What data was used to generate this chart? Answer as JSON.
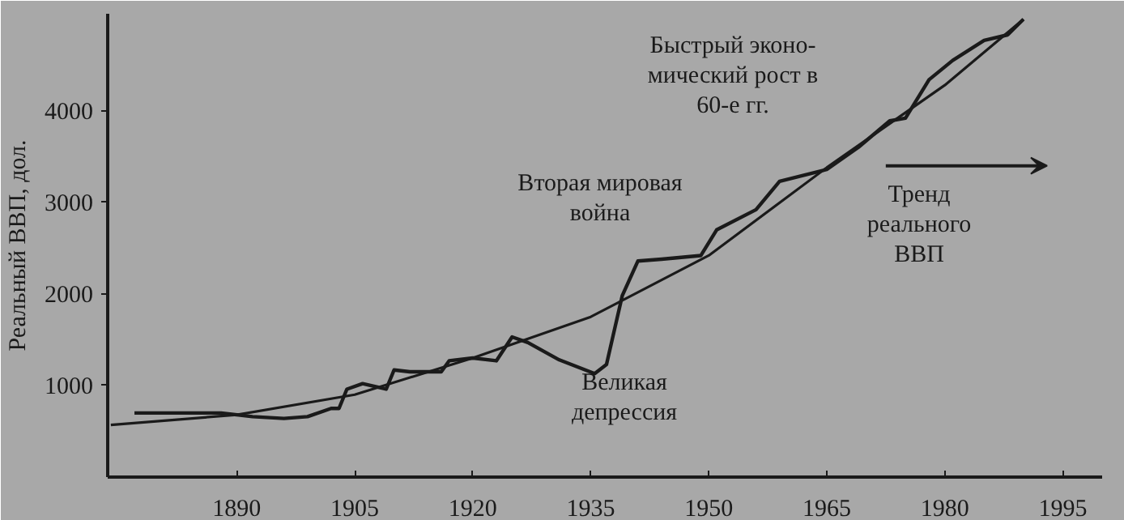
{
  "chart_data": {
    "type": "line",
    "ylabel": "Реальный ВВП, дол.",
    "xlim": [
      1873.6,
      2000
    ],
    "ylim": [
      0,
      5060
    ],
    "xticks": [
      1890,
      1905,
      1920,
      1935,
      1950,
      1965,
      1980,
      1995
    ],
    "yticks": [
      1000,
      2000,
      3000,
      4000
    ],
    "grid": false,
    "marker": "none",
    "line_style": "solid",
    "series": [
      {
        "color": "#1a1a1a",
        "x": [
          1877,
          1888,
          1892,
          1896,
          1899,
          1902,
          1903,
          1904,
          1906,
          1909,
          1910,
          1912,
          1916,
          1917,
          1920,
          1923,
          1925,
          1927,
          1931,
          1935.5,
          1937,
          1939,
          1941,
          1944,
          1949,
          1951,
          1956,
          1959,
          1965,
          1969,
          1973,
          1975,
          1978,
          1981,
          1985,
          1988,
          1990
        ],
        "values": [
          700,
          700,
          660,
          640,
          660,
          750,
          750,
          960,
          1020,
          960,
          1170,
          1150,
          1150,
          1270,
          1300,
          1270,
          1530,
          1470,
          1280,
          1130,
          1230,
          1980,
          2360,
          2380,
          2420,
          2700,
          2920,
          3230,
          3360,
          3600,
          3890,
          3920,
          4340,
          4550,
          4770,
          4830,
          5000
        ]
      },
      {
        "color": "#1a1a1a",
        "x": [
          1874,
          1890,
          1905,
          1920,
          1935,
          1950,
          1965,
          1980,
          1990
        ],
        "values": [
          570,
          680,
          900,
          1300,
          1750,
          2420,
          3380,
          4280,
          5000
        ]
      }
    ],
    "annotations": [
      "Быстрый эконо-\nмический рост в\n60-е гг.",
      "Вторая мировая\nвойна",
      "Великая\nдепрессия",
      "Тренд\nреального\nВВП"
    ]
  }
}
